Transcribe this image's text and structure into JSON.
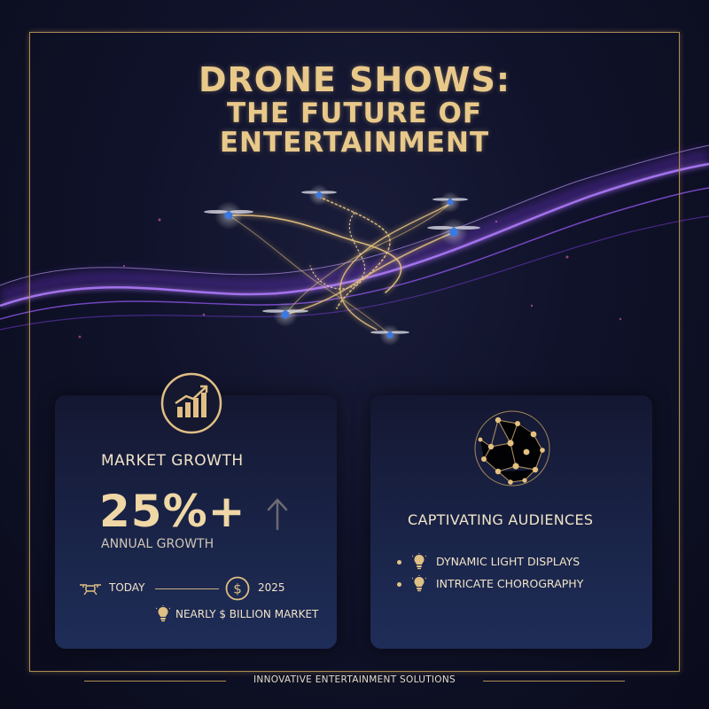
{
  "title": {
    "line1": "DRONE SHOWS:",
    "line2": "THE FUTURE OF",
    "line3": "ENTERTAINMENT"
  },
  "market_card": {
    "icon": "growth-chart-icon",
    "heading": "MARKET GROWTH",
    "big_number": "25%+",
    "arrow_icon": "up-arrow-icon",
    "subtitle": "ANNUAL GROWTH",
    "timeline": {
      "start_icon": "drone-icon",
      "start_label": "TODAY",
      "end_icon": "dollar-icon",
      "end_label": "2025"
    },
    "market_icon": "lightbulb-icon",
    "market_text": "NEARLY $ BILLION MARKET"
  },
  "audience_card": {
    "icon": "network-globe-icon",
    "heading": "CAPTIVATING AUDIENCES",
    "bullets": [
      {
        "icon": "lightbulb-icon",
        "text": "DYNAMIC LIGHT DISPLAYS"
      },
      {
        "icon": "lightbulb-icon",
        "text": "INTRICATE CHOROGRAPHY"
      }
    ]
  },
  "footer": "INNOVATIVE ENTERTAINMENT SOLUTIONS",
  "colors": {
    "gold": "#e9c98a",
    "purple_wave": "#a15cff",
    "background": "#0d0f1f",
    "card": "#1a2448"
  }
}
